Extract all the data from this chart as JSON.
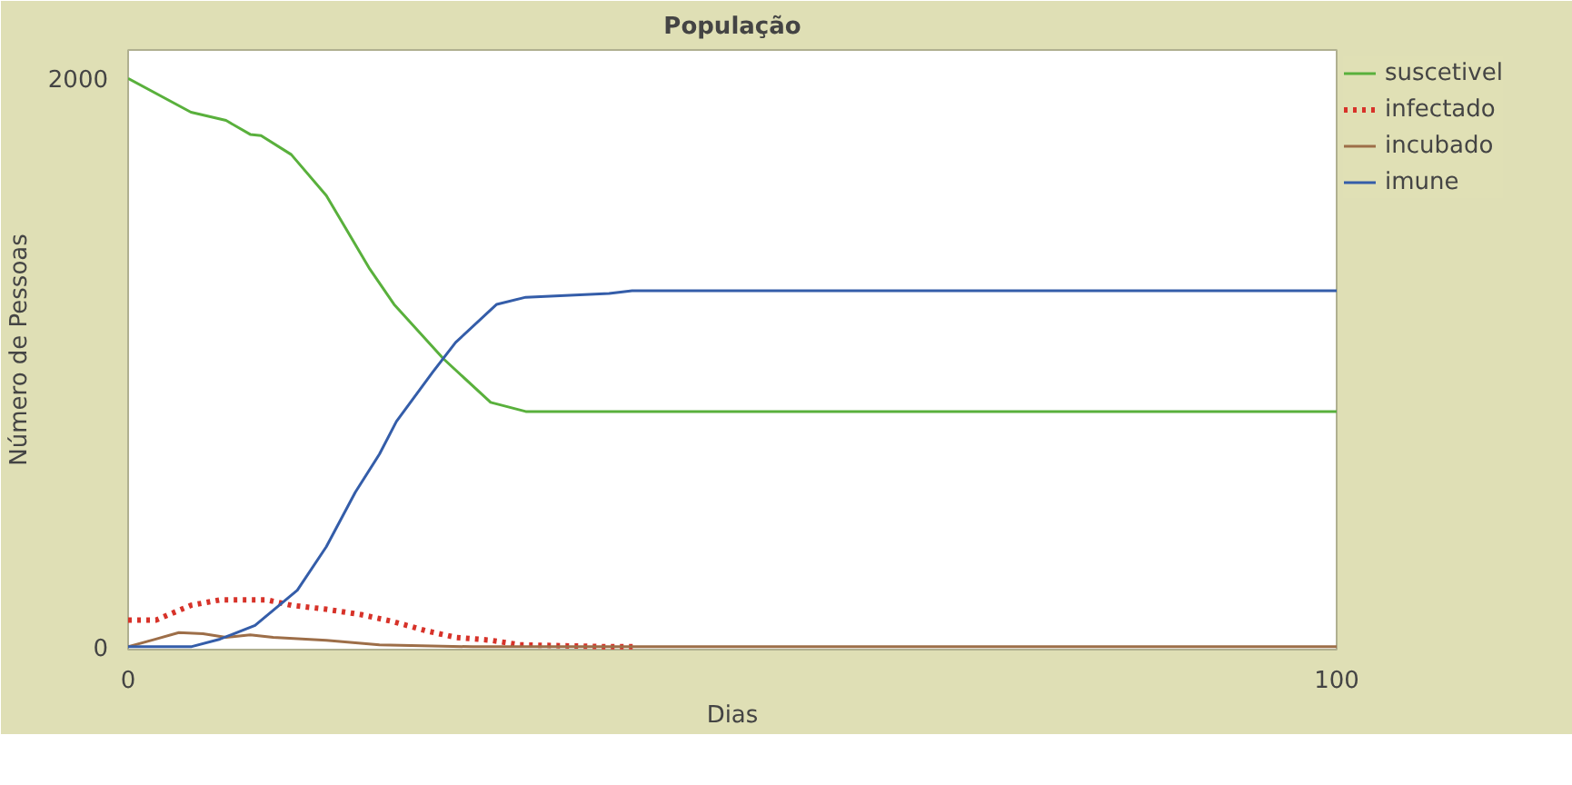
{
  "chart_data": {
    "type": "line",
    "title": "População",
    "xlabel": "Dias",
    "ylabel": "Número de Pessoas",
    "xlim": [
      0,
      100
    ],
    "ylim": [
      -10,
      2100
    ],
    "xticks": [
      0,
      100
    ],
    "yticks": [
      0,
      2000
    ],
    "legend": "right",
    "series": [
      {
        "name": "suscetivel",
        "color": "#59b03c",
        "x": [
          0,
          5.2,
          8.1,
          10.1,
          11,
          13.5,
          16.4,
          20,
          22,
          26.1,
          30,
          32.9,
          100
        ],
        "values": [
          2000,
          1881,
          1852,
          1803,
          1799,
          1732,
          1588,
          1329,
          1205,
          1013,
          860,
          828,
          828
        ]
      },
      {
        "name": "infectado",
        "color": "#d73229",
        "line_style": "dotted",
        "x": [
          0,
          2.3,
          5.2,
          7.6,
          11.5,
          13.5,
          16.4,
          19.3,
          21.8,
          24.7,
          27.1,
          30,
          32.4,
          39.8,
          42.2
        ],
        "values": [
          94,
          94,
          146,
          165,
          165,
          146,
          132,
          113,
          90,
          56,
          33,
          23,
          7,
          0,
          0
        ]
      },
      {
        "name": "incubado",
        "color": "#9d6e48",
        "x": [
          0,
          2.3,
          4.2,
          6.2,
          8.1,
          10.1,
          12,
          16.4,
          20.8,
          28.5,
          100
        ],
        "values": [
          0,
          27,
          50,
          46,
          33,
          42,
          33,
          23,
          7,
          0,
          0
        ]
      },
      {
        "name": "imune",
        "color": "#345da9",
        "x": [
          0,
          5.2,
          7.6,
          10.5,
          14,
          16.4,
          18.8,
          20.8,
          22.2,
          25.2,
          27.1,
          30.5,
          32.9,
          39.8,
          41.7,
          100
        ],
        "values": [
          0,
          0,
          27,
          75,
          199,
          352,
          544,
          678,
          793,
          966,
          1071,
          1205,
          1230,
          1243,
          1253,
          1253
        ]
      }
    ]
  }
}
